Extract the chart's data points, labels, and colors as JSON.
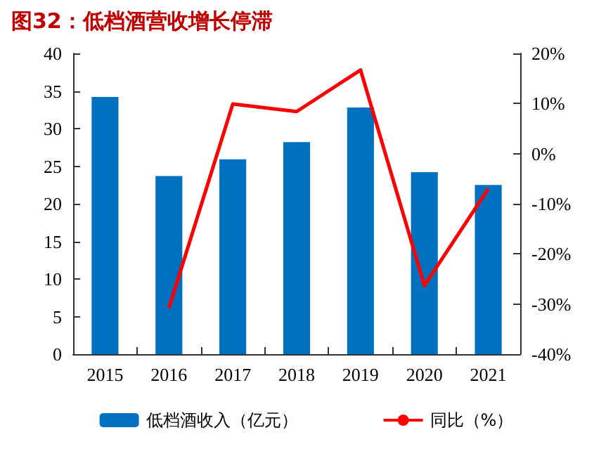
{
  "chart_data": {
    "type": "bar",
    "title": "图32：低档酒营收增长停滞",
    "categories": [
      "2015",
      "2016",
      "2017",
      "2018",
      "2019",
      "2020",
      "2021"
    ],
    "series": [
      {
        "name": "低档酒收入（亿元）",
        "color": "#0070c0",
        "values": [
          34.2,
          23.7,
          25.9,
          28.2,
          32.8,
          24.2,
          22.5
        ]
      },
      {
        "name": "同比（%）",
        "type": "line",
        "axis": "y2",
        "color": "#ff0000",
        "marker": "none",
        "values": [
          null,
          -30.8,
          9.9,
          8.4,
          16.7,
          -26.3,
          -7.0
        ]
      }
    ],
    "ylim": [
      0,
      40
    ],
    "yticks": [
      0,
      5,
      10,
      15,
      20,
      25,
      30,
      35,
      40
    ],
    "y2lim": [
      -40,
      20
    ],
    "y2ticks": [
      {
        "value": -40,
        "label": "-40%"
      },
      {
        "value": -30,
        "label": "-30%"
      },
      {
        "value": -20,
        "label": "-20%"
      },
      {
        "value": -10,
        "label": "-10%"
      },
      {
        "value": 0,
        "label": "0%"
      },
      {
        "value": 10,
        "label": "10%"
      },
      {
        "value": 20,
        "label": "20%"
      }
    ],
    "legend": "bottom",
    "grid": false
  }
}
